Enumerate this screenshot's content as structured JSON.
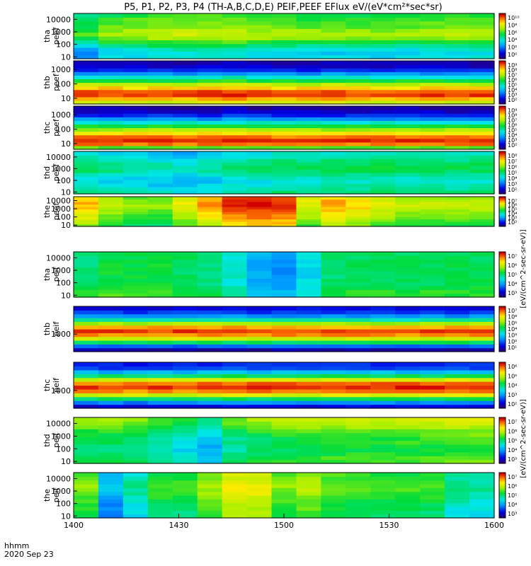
{
  "title": "P5, P1, P2, P3, P4 (TH-A,B,C,D,E) PEIF,PEEF EFlux eV/(eV*cm²*sec*sr)",
  "colorbar_label_elec": "[eV/(cm^2-sec-sr-eV)]",
  "colorbar_label_ion": "[eV/(cm^2-sec-sr-eV)]",
  "footer": {
    "time_label": "hhmm",
    "date_label": "2020 Sep 23"
  },
  "chart_data": {
    "type": "heatmap",
    "x_axis": {
      "ticks": [
        "1400",
        "1430",
        "1500",
        "1530",
        "1600"
      ],
      "range_hhmm": [
        "1400",
        "1600"
      ]
    },
    "y_scale": "log",
    "colormap": "rainbow (blue-cyan-green-yellow-red)",
    "panels": [
      {
        "id": "tha-peef",
        "label_1": "tha",
        "label_2": "peef",
        "y_ticks": [
          "10",
          "100",
          "1000",
          "10000"
        ],
        "y_range": [
          7,
          30000
        ],
        "cbar_ticks": [
          "10¹⁰",
          "10⁸",
          "10⁶",
          "10⁴",
          "10²",
          "10⁰"
        ],
        "profile": [
          0.4,
          0.38,
          0.42,
          0.5,
          0.58,
          0.66,
          0.7,
          0.68,
          0.64,
          0.62,
          0.6,
          0.56
        ],
        "trend": [
          -0.1,
          -0.02,
          0.0,
          0.02,
          0.03,
          0.03,
          0.02,
          0.0,
          -0.01,
          -0.02,
          -0.02,
          -0.03,
          -0.03,
          -0.02,
          -0.01,
          0.0,
          0.0
        ],
        "band": null
      },
      {
        "id": "thb-peef",
        "label_1": "thb",
        "label_2": "peef",
        "y_ticks": [
          "10",
          "100",
          "1000"
        ],
        "y_range": [
          4,
          4000
        ],
        "cbar_ticks": [
          "10⁹",
          "10⁸",
          "10⁷",
          "10⁶",
          "10⁵",
          "10⁴",
          "10³",
          "10²"
        ],
        "profile": [
          0.72,
          0.85,
          0.95,
          0.93,
          0.82,
          0.7,
          0.55,
          0.42,
          0.28,
          0.15,
          0.08,
          0.05
        ],
        "trend": [
          0.0,
          0.0,
          0.01,
          0.0,
          0.0,
          0.01,
          0.02,
          0.01,
          0.0,
          0.0,
          0.01,
          0.0,
          0.0,
          0.0,
          0.0,
          0.0,
          0.0
        ],
        "band": null
      },
      {
        "id": "thc-peef",
        "label_1": "thc",
        "label_2": "peef",
        "y_ticks": [
          "10",
          "100",
          "1000"
        ],
        "y_range": [
          4,
          4000
        ],
        "cbar_ticks": [
          "10⁹",
          "10⁸",
          "10⁷",
          "10⁶",
          "10⁵",
          "10⁴",
          "10³",
          "10²"
        ],
        "profile": [
          0.62,
          0.9,
          0.96,
          0.9,
          0.8,
          0.68,
          0.55,
          0.42,
          0.28,
          0.16,
          0.08,
          0.05
        ],
        "trend": [
          0.0,
          0.0,
          0.0,
          0.01,
          0.0,
          0.0,
          0.01,
          0.0,
          0.0,
          0.0,
          0.0,
          0.0,
          0.0,
          0.0,
          0.0,
          0.0,
          0.0
        ],
        "band": null
      },
      {
        "id": "thd-peef",
        "label_1": "thd",
        "label_2": "peef",
        "y_ticks": [
          "10",
          "100",
          "1000",
          "10000"
        ],
        "y_range": [
          7,
          30000
        ],
        "cbar_ticks": [
          "10⁸",
          "10⁷",
          "10⁶",
          "10⁵",
          "10⁴",
          "10³",
          "10²"
        ],
        "profile": [
          0.48,
          0.45,
          0.42,
          0.4,
          0.42,
          0.46,
          0.5,
          0.52,
          0.5,
          0.47,
          0.44,
          0.4
        ],
        "trend": [
          0.0,
          -0.02,
          -0.04,
          -0.06,
          -0.08,
          -0.05,
          -0.02,
          0.0,
          0.02,
          0.02,
          0.02,
          0.02,
          0.03,
          0.02,
          0.02,
          0.02,
          0.02
        ],
        "band": null
      },
      {
        "id": "the-peef",
        "label_1": "the",
        "label_2": "peef",
        "y_ticks": [
          "10",
          "100",
          "1000",
          "10000"
        ],
        "y_range": [
          7,
          30000
        ],
        "cbar_ticks": [
          "10⁷",
          "10⁶",
          "10⁵",
          "10⁴",
          "10³",
          "10²"
        ],
        "profile": [
          0.55,
          0.58,
          0.6,
          0.62,
          0.64,
          0.66,
          0.68,
          0.7,
          0.72,
          0.72,
          0.7,
          0.68
        ],
        "trend": [
          0.12,
          0.0,
          -0.05,
          -0.05,
          0.05,
          0.15,
          0.25,
          0.27,
          0.25,
          0.05,
          0.15,
          0.1,
          0.05,
          0.0,
          0.0,
          0.0,
          0.0
        ],
        "band": null
      },
      {
        "id": "tha-peif",
        "label_1": "tha",
        "label_2": "peif",
        "y_ticks": [
          "10",
          "100",
          "1000",
          "10000"
        ],
        "y_range": [
          7,
          30000
        ],
        "cbar_ticks": [
          "10⁷",
          "10⁶",
          "10⁵",
          "10⁴",
          "10³"
        ],
        "profile": [
          0.55,
          0.55,
          0.52,
          0.5,
          0.5,
          0.5,
          0.5,
          0.5,
          0.5,
          0.5,
          0.5,
          0.5
        ],
        "trend": [
          0.0,
          0.05,
          0.05,
          0.05,
          0.02,
          -0.02,
          -0.08,
          -0.18,
          -0.22,
          -0.12,
          0.0,
          0.02,
          0.02,
          0.02,
          0.02,
          0.03,
          0.03
        ],
        "band": null
      },
      {
        "id": "thb-peif",
        "label_1": "thb",
        "label_2": "peif",
        "y_ticks": [
          "1000"
        ],
        "y_range": [
          150,
          20000
        ],
        "cbar_ticks": [
          "10⁷",
          "10⁶",
          "10⁵",
          "10⁴",
          "10³",
          "10²",
          "10¹"
        ],
        "profile": [
          0.05,
          0.22,
          0.52,
          0.72,
          0.88,
          0.95,
          0.86,
          0.68,
          0.45,
          0.28,
          0.18,
          0.12
        ],
        "trend": [
          0.0,
          0.0,
          0.0,
          0.0,
          0.01,
          0.0,
          0.0,
          0.0,
          0.0,
          0.0,
          0.0,
          0.0,
          0.0,
          0.0,
          0.0,
          0.0,
          0.0
        ],
        "band": null
      },
      {
        "id": "thc-peif",
        "label_1": "thc",
        "label_2": "peif",
        "y_ticks": [
          "1000"
        ],
        "y_range": [
          150,
          20000
        ],
        "cbar_ticks": [
          "10⁶",
          "10⁵",
          "10⁴",
          "10³",
          "10²"
        ],
        "profile": [
          0.1,
          0.25,
          0.5,
          0.72,
          0.88,
          0.95,
          0.9,
          0.72,
          0.5,
          0.32,
          0.18,
          0.14
        ],
        "trend": [
          0.0,
          0.0,
          0.0,
          0.0,
          0.0,
          0.01,
          0.02,
          0.02,
          0.02,
          0.02,
          0.02,
          0.02,
          0.02,
          0.02,
          0.02,
          0.02,
          0.02
        ],
        "band": null
      },
      {
        "id": "thd-peif",
        "label_1": "thd",
        "label_2": "peif",
        "y_ticks": [
          "10",
          "100",
          "1000",
          "10000"
        ],
        "y_range": [
          7,
          30000
        ],
        "cbar_ticks": [
          "10⁷",
          "10⁶",
          "10⁵",
          "10⁴",
          "10³"
        ],
        "profile": [
          0.55,
          0.55,
          0.52,
          0.5,
          0.5,
          0.52,
          0.52,
          0.55,
          0.58,
          0.62,
          0.66,
          0.68
        ],
        "trend": [
          0.0,
          0.0,
          -0.03,
          -0.06,
          -0.12,
          -0.18,
          -0.05,
          0.0,
          0.02,
          0.03,
          0.04,
          0.05,
          0.05,
          0.06,
          0.06,
          0.07,
          0.08
        ],
        "band": null
      },
      {
        "id": "the-peif",
        "label_1": "the",
        "label_2": "peif",
        "y_ticks": [
          "10",
          "100",
          "1000",
          "10000"
        ],
        "y_range": [
          7,
          30000
        ],
        "cbar_ticks": [
          "10⁷",
          "10⁶",
          "10⁵",
          "10⁴",
          "10³"
        ],
        "profile": [
          0.5,
          0.5,
          0.52,
          0.52,
          0.54,
          0.56,
          0.58,
          0.6,
          0.6,
          0.58,
          0.56,
          0.55
        ],
        "trend": [
          0.05,
          -0.25,
          -0.12,
          0.0,
          0.0,
          0.08,
          0.18,
          0.18,
          0.05,
          0.1,
          0.05,
          0.02,
          0.0,
          0.0,
          0.0,
          -0.1,
          -0.12
        ],
        "band": null
      }
    ]
  }
}
